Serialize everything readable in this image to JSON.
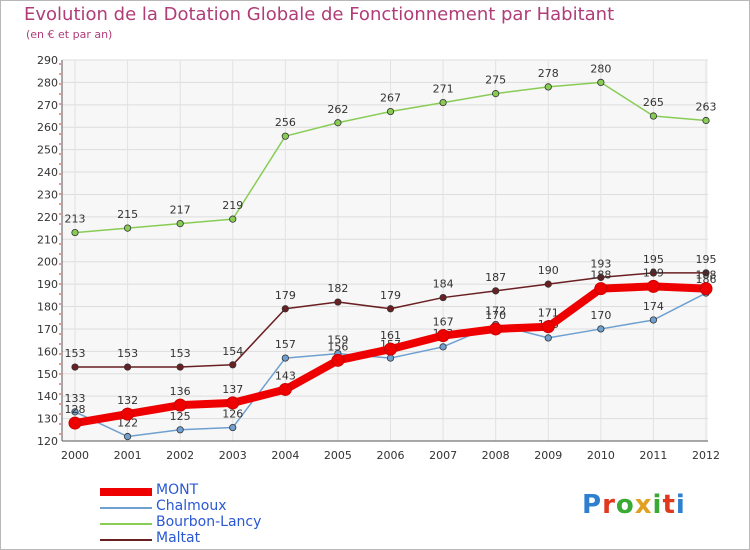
{
  "header": {
    "title": "Evolution de la Dotation Globale de Fonctionnement par Habitant",
    "subtitle": "(en € et par an)"
  },
  "logo": {
    "letters": [
      "P",
      "r",
      "o",
      "x",
      "i",
      "t",
      "i"
    ],
    "colors": [
      "#2f7fd0",
      "#e03a1e",
      "#3aaa35",
      "#e0a020",
      "#3aaa35",
      "#e03a1e",
      "#2f7fd0"
    ]
  },
  "chart_data": {
    "type": "line",
    "title": "Evolution de la Dotation Globale de Fonctionnement par Habitant",
    "subtitle": "(en € et par an)",
    "xlabel": "",
    "ylabel": "",
    "x": [
      "2000",
      "2001",
      "2002",
      "2003",
      "2004",
      "2005",
      "2006",
      "2007",
      "2008",
      "2009",
      "2010",
      "2011",
      "2012"
    ],
    "ylim": [
      120,
      290
    ],
    "yticks": [
      120,
      130,
      140,
      150,
      160,
      170,
      180,
      190,
      200,
      210,
      220,
      230,
      240,
      250,
      260,
      270,
      280,
      290
    ],
    "grid": true,
    "legend_position": "bottom-left",
    "series": [
      {
        "name": "MONT",
        "color": "#ee0000",
        "values": [
          128,
          132,
          136,
          137,
          143,
          156,
          161,
          167,
          170,
          171,
          188,
          189,
          188
        ]
      },
      {
        "name": "Chalmoux",
        "color": "#6fa0d0",
        "values": [
          133,
          122,
          125,
          126,
          157,
          159,
          157,
          162,
          172,
          166,
          170,
          174,
          186
        ]
      },
      {
        "name": "Bourbon-Lancy",
        "color": "#88cc55",
        "values": [
          213,
          215,
          217,
          219,
          256,
          262,
          267,
          271,
          275,
          278,
          280,
          265,
          263
        ]
      },
      {
        "name": "Maltat",
        "color": "#6a1f22",
        "values": [
          153,
          153,
          153,
          154,
          179,
          182,
          179,
          184,
          187,
          190,
          193,
          195,
          195
        ]
      }
    ]
  }
}
